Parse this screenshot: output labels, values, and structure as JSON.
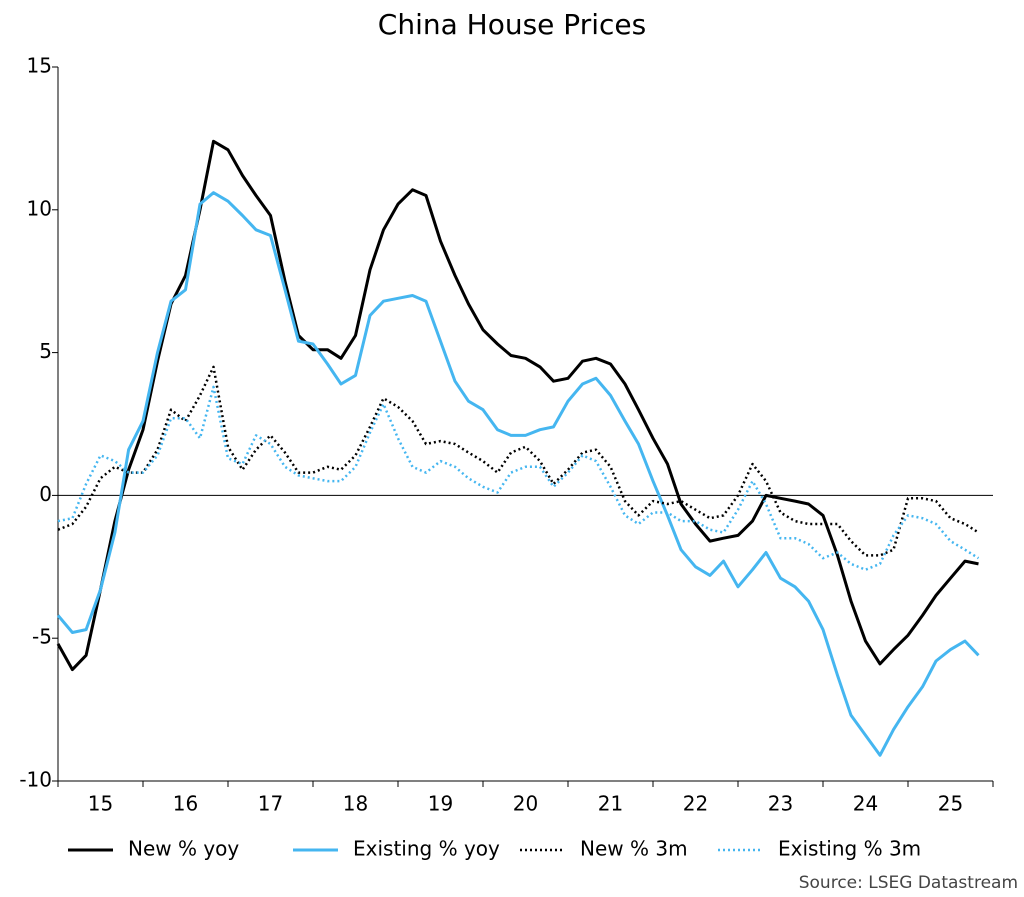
{
  "chart_data": {
    "type": "line",
    "title": "China House Prices",
    "source": "Source: LSEG Datastream",
    "categories": [
      "15",
      "16",
      "17",
      "18",
      "19",
      "20",
      "21",
      "22",
      "23",
      "24",
      "25"
    ],
    "xlim": [
      15,
      26
    ],
    "x": [
      15,
      15.17,
      15.33,
      15.5,
      15.67,
      15.83,
      16,
      16.17,
      16.33,
      16.5,
      16.67,
      16.83,
      17,
      17.17,
      17.33,
      17.5,
      17.67,
      17.83,
      18,
      18.17,
      18.33,
      18.5,
      18.67,
      18.83,
      19,
      19.17,
      19.33,
      19.5,
      19.67,
      19.83,
      20,
      20.17,
      20.33,
      20.5,
      20.67,
      20.83,
      21,
      21.17,
      21.33,
      21.5,
      21.67,
      21.83,
      22,
      22.17,
      22.33,
      22.5,
      22.67,
      22.83,
      23,
      23.17,
      23.33,
      23.5,
      23.67,
      23.83,
      24,
      24.17,
      24.33,
      24.5,
      24.67,
      24.83,
      25,
      25.17,
      25.33,
      25.5,
      25.67,
      25.83
    ],
    "ylim": [
      -10,
      15
    ],
    "yticks": [
      -10,
      -5,
      0,
      5,
      10,
      15
    ],
    "series": [
      {
        "name": "New % yoy",
        "color": "#000000",
        "style": "solid",
        "values": [
          -5.2,
          -6.1,
          -5.6,
          -3.3,
          -0.9,
          0.9,
          2.3,
          4.7,
          6.7,
          7.7,
          10.0,
          12.4,
          12.1,
          11.2,
          10.5,
          9.8,
          7.5,
          5.6,
          5.1,
          5.1,
          4.8,
          5.6,
          7.9,
          9.3,
          10.2,
          10.7,
          10.5,
          8.9,
          7.7,
          6.7,
          5.8,
          5.3,
          4.9,
          4.8,
          4.5,
          4.0,
          4.1,
          4.7,
          4.8,
          4.6,
          3.9,
          3.0,
          2.0,
          1.1,
          -0.3,
          -1.0,
          -1.6,
          -1.5,
          -1.4,
          -0.9,
          0.0,
          -0.1,
          -0.2,
          -0.3,
          -0.7,
          -2.1,
          -3.7,
          -5.1,
          -5.9,
          -5.4,
          -4.9,
          -4.2,
          -3.5,
          -2.9,
          -2.3,
          -2.4
        ]
      },
      {
        "name": "Existing % yoy",
        "color": "#45b6f0",
        "style": "solid",
        "values": [
          -4.2,
          -4.8,
          -4.7,
          -3.3,
          -1.3,
          1.6,
          2.6,
          5.0,
          6.8,
          7.2,
          10.2,
          10.6,
          10.3,
          9.8,
          9.3,
          9.1,
          7.2,
          5.4,
          5.3,
          4.6,
          3.9,
          4.2,
          6.3,
          6.8,
          6.9,
          7.0,
          6.8,
          5.4,
          4.0,
          3.3,
          3.0,
          2.3,
          2.1,
          2.1,
          2.3,
          2.4,
          3.3,
          3.9,
          4.1,
          3.5,
          2.6,
          1.8,
          0.5,
          -0.7,
          -1.9,
          -2.5,
          -2.8,
          -2.3,
          -3.2,
          -2.6,
          -2.0,
          -2.9,
          -3.2,
          -3.7,
          -4.7,
          -6.3,
          -7.7,
          -8.4,
          -9.1,
          -8.2,
          -7.4,
          -6.7,
          -5.8,
          -5.4,
          -5.1,
          -5.6
        ]
      },
      {
        "name": "New % 3m",
        "color": "#000000",
        "style": "dotted",
        "values": [
          -1.2,
          -1.0,
          -0.4,
          0.6,
          1.0,
          0.8,
          0.8,
          1.6,
          3.0,
          2.6,
          3.5,
          4.5,
          1.7,
          0.9,
          1.6,
          2.1,
          1.5,
          0.8,
          0.8,
          1.0,
          0.9,
          1.4,
          2.4,
          3.4,
          3.1,
          2.6,
          1.8,
          1.9,
          1.8,
          1.5,
          1.2,
          0.8,
          1.5,
          1.7,
          1.2,
          0.4,
          0.9,
          1.5,
          1.6,
          1.0,
          -0.2,
          -0.7,
          -0.2,
          -0.3,
          -0.2,
          -0.5,
          -0.8,
          -0.7,
          0.0,
          1.1,
          0.5,
          -0.6,
          -0.9,
          -1.0,
          -1.0,
          -1.0,
          -1.6,
          -2.1,
          -2.1,
          -1.9,
          -0.1,
          -0.1,
          -0.2,
          -0.8,
          -1.0,
          -1.3
        ]
      },
      {
        "name": "Existing % 3m",
        "color": "#45b6f0",
        "style": "dotted",
        "values": [
          -0.9,
          -0.8,
          0.4,
          1.4,
          1.2,
          0.8,
          0.8,
          1.4,
          2.7,
          2.7,
          2.0,
          3.8,
          1.3,
          1.1,
          2.1,
          1.8,
          1.0,
          0.7,
          0.6,
          0.5,
          0.5,
          1.0,
          2.2,
          3.2,
          2.0,
          1.0,
          0.8,
          1.2,
          1.0,
          0.6,
          0.3,
          0.1,
          0.8,
          1.0,
          1.0,
          0.3,
          0.8,
          1.4,
          1.2,
          0.3,
          -0.7,
          -1.0,
          -0.6,
          -0.6,
          -0.9,
          -0.9,
          -1.2,
          -1.3,
          -0.5,
          0.5,
          -0.3,
          -1.5,
          -1.5,
          -1.7,
          -2.2,
          -2.0,
          -2.4,
          -2.6,
          -2.4,
          -1.4,
          -0.7,
          -0.8,
          -1.0,
          -1.6,
          -1.9,
          -2.2
        ]
      }
    ]
  }
}
